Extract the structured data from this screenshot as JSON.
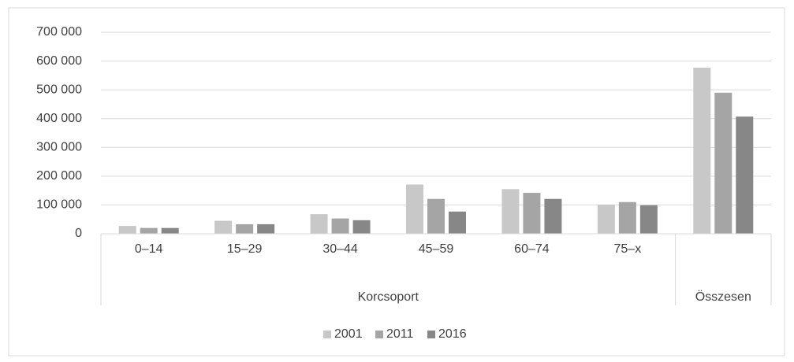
{
  "chart_data": {
    "type": "bar",
    "categories": [
      "0–14",
      "15–29",
      "30–44",
      "45–59",
      "60–74",
      "75–x",
      null
    ],
    "groups": [
      {
        "label": "Korcsoport",
        "span": 6
      },
      {
        "label": "Összesen",
        "span": 1
      }
    ],
    "series": [
      {
        "name": "2001",
        "color": "#c8c8c8",
        "values": [
          27000,
          45000,
          68000,
          171000,
          155000,
          101000,
          577000
        ]
      },
      {
        "name": "2011",
        "color": "#a5a5a5",
        "values": [
          20000,
          33000,
          53000,
          121000,
          142000,
          110000,
          490000
        ]
      },
      {
        "name": "2016",
        "color": "#878787",
        "values": [
          20000,
          33000,
          47000,
          77000,
          121000,
          99000,
          407000
        ]
      }
    ],
    "ylim": [
      0,
      700000
    ],
    "yticks": [
      0,
      {
        "value": 100000,
        "label": "100 000"
      },
      {
        "value": 200000,
        "label": "200 000"
      },
      {
        "value": 300000,
        "label": "300 000"
      },
      {
        "value": 400000,
        "label": "400 000"
      },
      {
        "value": 500000,
        "label": "500 000"
      },
      {
        "value": 600000,
        "label": "600 000"
      },
      {
        "value": 700000,
        "label": "700 000"
      }
    ],
    "grid": true,
    "legend": "bottom"
  }
}
